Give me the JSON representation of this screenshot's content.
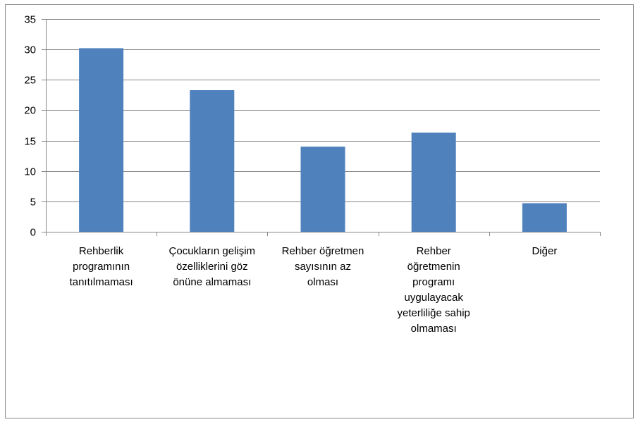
{
  "chart_data": {
    "type": "bar",
    "categories": [
      "Rehberlik programının tanıtılmaması",
      "Çocukların gelişim özelliklerini göz önüne almaması",
      "Rehber öğretmen sayısının az olması",
      "Rehber öğretmenin programı uygulayacak yeterliliğe sahip olmaması",
      "Diğer"
    ],
    "category_label_lines": [
      [
        "Rehberlik",
        "programının",
        "tanıtılmaması"
      ],
      [
        "Çocukların gelişim",
        "özelliklerini göz",
        "önüne almaması"
      ],
      [
        "Rehber öğretmen",
        "sayısının az",
        "olması"
      ],
      [
        "Rehber",
        "öğretmenin",
        "programı",
        "uygulayacak",
        "yeterliliğe sahip",
        "olmaması"
      ],
      [
        "Diğer"
      ]
    ],
    "values": [
      30.2,
      23.3,
      14.0,
      16.3,
      4.7
    ],
    "ylim": [
      0,
      35
    ],
    "yticks": [
      "0",
      "5",
      "10",
      "15",
      "20",
      "25",
      "30",
      "35"
    ],
    "title": "",
    "xlabel": "",
    "ylabel": "",
    "grid": true,
    "legend": "none",
    "colors": {
      "bar": "#4f81bd",
      "grid": "#868686",
      "axis": "#868686"
    }
  }
}
